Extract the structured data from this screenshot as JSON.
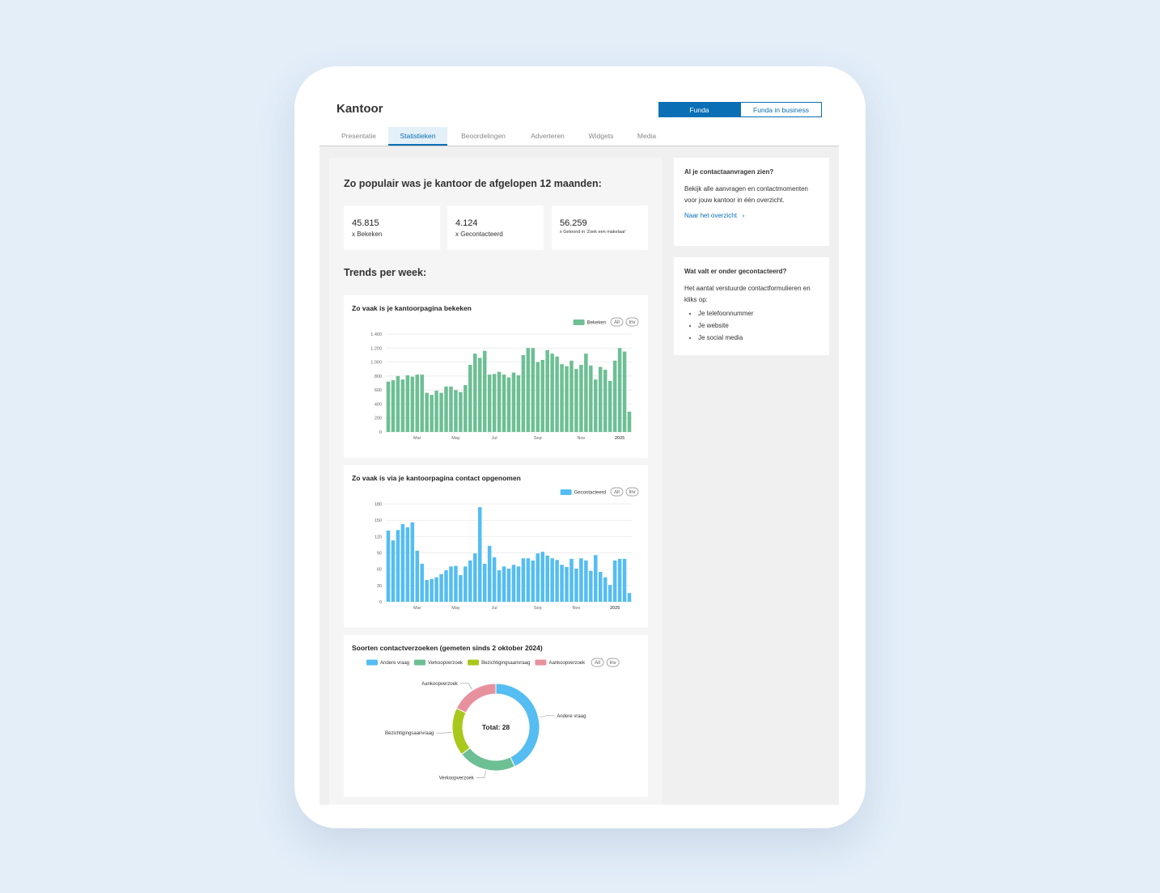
{
  "header": {
    "title": "Kantoor",
    "toggle": [
      "Funda",
      "Funda in business"
    ]
  },
  "tabs": [
    "Presentatie",
    "Statistieken",
    "Beoordelingen",
    "Adverteren",
    "Widgets",
    "Media"
  ],
  "summary": {
    "title": "Zo populair was je kantoor de afgelopen 12 maanden:",
    "stats": [
      {
        "value": "45.815",
        "label": "x Bekeken"
      },
      {
        "value": "4.124",
        "label": "x Gecontacteerd"
      },
      {
        "value": "56.259",
        "label": "x Getoond in 'Zoek een makelaar'"
      }
    ],
    "trends_title": "Trends per week:"
  },
  "sidebar": [
    {
      "title": "Al je contactaanvragen zien?",
      "text": "Bekijk alle aanvragen en contactmomenten voor jouw kantoor in één overzicht.",
      "link": "Naar het overzicht"
    },
    {
      "title": "Wat valt er onder gecontacteerd?",
      "text": "Het aantal verstuurde contactformulieren en kliks op:",
      "items": [
        "Je telefoonnummer",
        "Je website",
        "Je social media"
      ]
    }
  ],
  "chart_data": [
    {
      "type": "bar",
      "title": "Zo vaak is je kantoorpagina bekeken",
      "categories": [
        null,
        null,
        null,
        null,
        null,
        null,
        "Mar",
        null,
        null,
        null,
        null,
        null,
        null,
        null,
        "May",
        null,
        null,
        null,
        null,
        null,
        null,
        null,
        "Jul",
        null,
        null,
        null,
        null,
        null,
        null,
        null,
        null,
        "Sep",
        null,
        null,
        null,
        null,
        null,
        null,
        null,
        null,
        "Nov",
        null,
        null,
        null,
        null,
        null,
        null,
        null,
        "2025",
        null,
        null
      ],
      "series": [
        {
          "name": "Bekeken",
          "color": "#6dbf94",
          "values": [
            720,
            740,
            800,
            750,
            810,
            790,
            820,
            820,
            560,
            530,
            590,
            560,
            650,
            650,
            600,
            570,
            670,
            960,
            1120,
            1060,
            1160,
            820,
            830,
            860,
            820,
            780,
            850,
            810,
            1100,
            1200,
            1200,
            1000,
            1030,
            1170,
            1120,
            1080,
            970,
            940,
            1020,
            900,
            960,
            1120,
            950,
            750,
            930,
            890,
            730,
            1020,
            1200,
            1150,
            290
          ]
        }
      ],
      "ylim": [
        0,
        1400
      ],
      "yticks": [
        0,
        200,
        400,
        600,
        800,
        {
          "value": 1000,
          "label": "1.000"
        },
        {
          "value": 1200,
          "label": "1.200"
        },
        {
          "value": 1400,
          "label": "1.400"
        }
      ],
      "grid": true,
      "legend_buttons": [
        "All",
        "Inv"
      ]
    },
    {
      "type": "bar",
      "title": "Zo vaak is via je kantoorpagina contact opgenomen",
      "categories": [
        null,
        null,
        null,
        null,
        null,
        null,
        "Mar",
        null,
        null,
        null,
        null,
        null,
        null,
        null,
        "May",
        null,
        null,
        null,
        null,
        null,
        null,
        null,
        "Jul",
        null,
        null,
        null,
        null,
        null,
        null,
        null,
        null,
        "Sep",
        null,
        null,
        null,
        null,
        null,
        null,
        null,
        "Nov",
        null,
        null,
        null,
        null,
        null,
        null,
        null,
        "2025",
        null,
        null,
        null
      ],
      "series": [
        {
          "name": "Gecontacteerd",
          "color": "#55bdf2",
          "values": [
            131,
            113,
            132,
            143,
            137,
            146,
            94,
            70,
            40,
            42,
            45,
            51,
            58,
            65,
            66,
            49,
            65,
            76,
            89,
            174,
            70,
            103,
            82,
            58,
            65,
            61,
            68,
            65,
            80,
            80,
            76,
            89,
            92,
            85,
            80,
            77,
            68,
            64,
            79,
            61,
            80,
            76,
            57,
            86,
            55,
            45,
            31,
            76,
            79,
            79,
            16
          ]
        }
      ],
      "ylim": [
        0,
        180
      ],
      "yticks": [
        0,
        30,
        60,
        90,
        120,
        150,
        180
      ],
      "grid": true,
      "legend_buttons": [
        "All",
        "Inv"
      ]
    },
    {
      "type": "pie",
      "title": "Soorten contactverzoeken (gemeten sinds 2 oktober 2024)",
      "categories": [
        "Andere vraag",
        "Verkoopverzoek",
        "Bezichtigingsaanvraag",
        "Aankoopverzoek"
      ],
      "values": [
        12,
        6,
        5,
        5
      ],
      "colors": [
        "#55bdf2",
        "#6dbf94",
        "#a8c81c",
        "#e8919e"
      ],
      "donut": true,
      "center_label": "Total: 28",
      "legend_buttons": [
        "All",
        "Inv"
      ]
    }
  ]
}
